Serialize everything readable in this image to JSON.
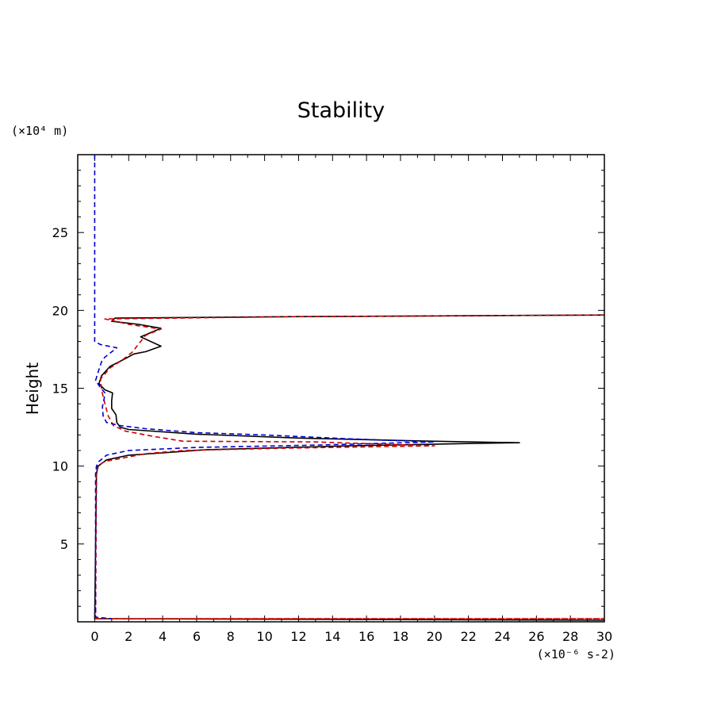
{
  "chart_data": {
    "type": "line",
    "title": "Stability",
    "xlabel": "",
    "x_unit_label": "(×10⁻⁶ s-2)",
    "ylabel": "Height",
    "y_unit_label": "(×10⁴ m)",
    "xlim": [
      -1,
      30
    ],
    "ylim": [
      0,
      30
    ],
    "x_ticks": [
      0,
      2,
      4,
      6,
      8,
      10,
      12,
      14,
      16,
      18,
      20,
      22,
      24,
      26,
      28,
      30
    ],
    "y_ticks": [
      5,
      10,
      15,
      20,
      25
    ],
    "grid": false,
    "legend": "none",
    "series": [
      {
        "color": "#000000",
        "dash": "solid",
        "points": [
          [
            0,
            0.2
          ],
          [
            30,
            0.1
          ],
          [
            0,
            0.2
          ],
          [
            0.1,
            9.5
          ],
          [
            0.2,
            10
          ],
          [
            0.7,
            10.4
          ],
          [
            2,
            10.7
          ],
          [
            4,
            10.85
          ],
          [
            6.5,
            11.05
          ],
          [
            15,
            11.3
          ],
          [
            22,
            11.45
          ],
          [
            25,
            11.5
          ],
          [
            20,
            11.6
          ],
          [
            12,
            11.8
          ],
          [
            6,
            12.05
          ],
          [
            2,
            12.35
          ],
          [
            1.5,
            12.5
          ],
          [
            1.3,
            12.8
          ],
          [
            1.25,
            13.3
          ],
          [
            1.0,
            13.7
          ],
          [
            1.0,
            14.2
          ],
          [
            1.05,
            14.7
          ],
          [
            0.6,
            14.9
          ],
          [
            0.25,
            15.3
          ],
          [
            0.4,
            15.8
          ],
          [
            0.9,
            16.4
          ],
          [
            1.8,
            16.9
          ],
          [
            2.3,
            17.2
          ],
          [
            3.0,
            17.35
          ],
          [
            3.9,
            17.7
          ],
          [
            2.7,
            18.3
          ],
          [
            3.9,
            18.85
          ],
          [
            2.6,
            19.1
          ],
          [
            1.0,
            19.3
          ],
          [
            1.2,
            19.5
          ],
          [
            12,
            19.6
          ],
          [
            30,
            19.7
          ]
        ]
      },
      {
        "color": "#cc0000",
        "dash": "dashed",
        "points": [
          [
            0.05,
            0.2
          ],
          [
            30,
            0.2
          ],
          [
            0.05,
            0.2
          ],
          [
            0.1,
            9.5
          ],
          [
            0.15,
            10
          ],
          [
            0.6,
            10.3
          ],
          [
            1.8,
            10.55
          ],
          [
            3,
            10.8
          ],
          [
            5.2,
            11.0
          ],
          [
            11,
            11.15
          ],
          [
            20,
            11.3
          ],
          [
            13,
            11.55
          ],
          [
            5.2,
            11.6
          ],
          [
            3.5,
            11.9
          ],
          [
            1.8,
            12.25
          ],
          [
            1.1,
            12.6
          ],
          [
            0.8,
            13.2
          ],
          [
            0.6,
            14.0
          ],
          [
            0.4,
            14.9
          ],
          [
            0.35,
            15.6
          ],
          [
            0.9,
            16.3
          ],
          [
            1.6,
            16.8
          ],
          [
            2.2,
            17.3
          ],
          [
            2.7,
            18.0
          ],
          [
            3.0,
            18.4
          ],
          [
            3.9,
            18.8
          ],
          [
            2.0,
            19.1
          ],
          [
            0.6,
            19.45
          ],
          [
            12,
            19.6
          ],
          [
            30,
            19.7
          ]
        ]
      },
      {
        "color": "#0000cc",
        "dash": "dashed",
        "points": [
          [
            0,
            30
          ],
          [
            0,
            18
          ],
          [
            0.35,
            17.8
          ],
          [
            1.3,
            17.6
          ],
          [
            0.9,
            17.25
          ],
          [
            0.6,
            17.0
          ],
          [
            0.4,
            16.7
          ],
          [
            0.25,
            16.2
          ],
          [
            0.05,
            15.5
          ],
          [
            0.3,
            15.1
          ],
          [
            0.6,
            14.7
          ],
          [
            0.55,
            14.3
          ],
          [
            0.45,
            13.8
          ],
          [
            0.5,
            13.2
          ],
          [
            0.7,
            12.8
          ],
          [
            1.5,
            12.6
          ],
          [
            3,
            12.4
          ],
          [
            6,
            12.15
          ],
          [
            10,
            12.0
          ],
          [
            15,
            11.75
          ],
          [
            20,
            11.55
          ],
          [
            13,
            11.35
          ],
          [
            6,
            11.2
          ],
          [
            2,
            11.0
          ],
          [
            0.7,
            10.7
          ],
          [
            0.25,
            10.3
          ],
          [
            0.1,
            10.0
          ],
          [
            0.05,
            9.5
          ],
          [
            0.05,
            0.3
          ],
          [
            1,
            0.2
          ]
        ]
      }
    ]
  }
}
